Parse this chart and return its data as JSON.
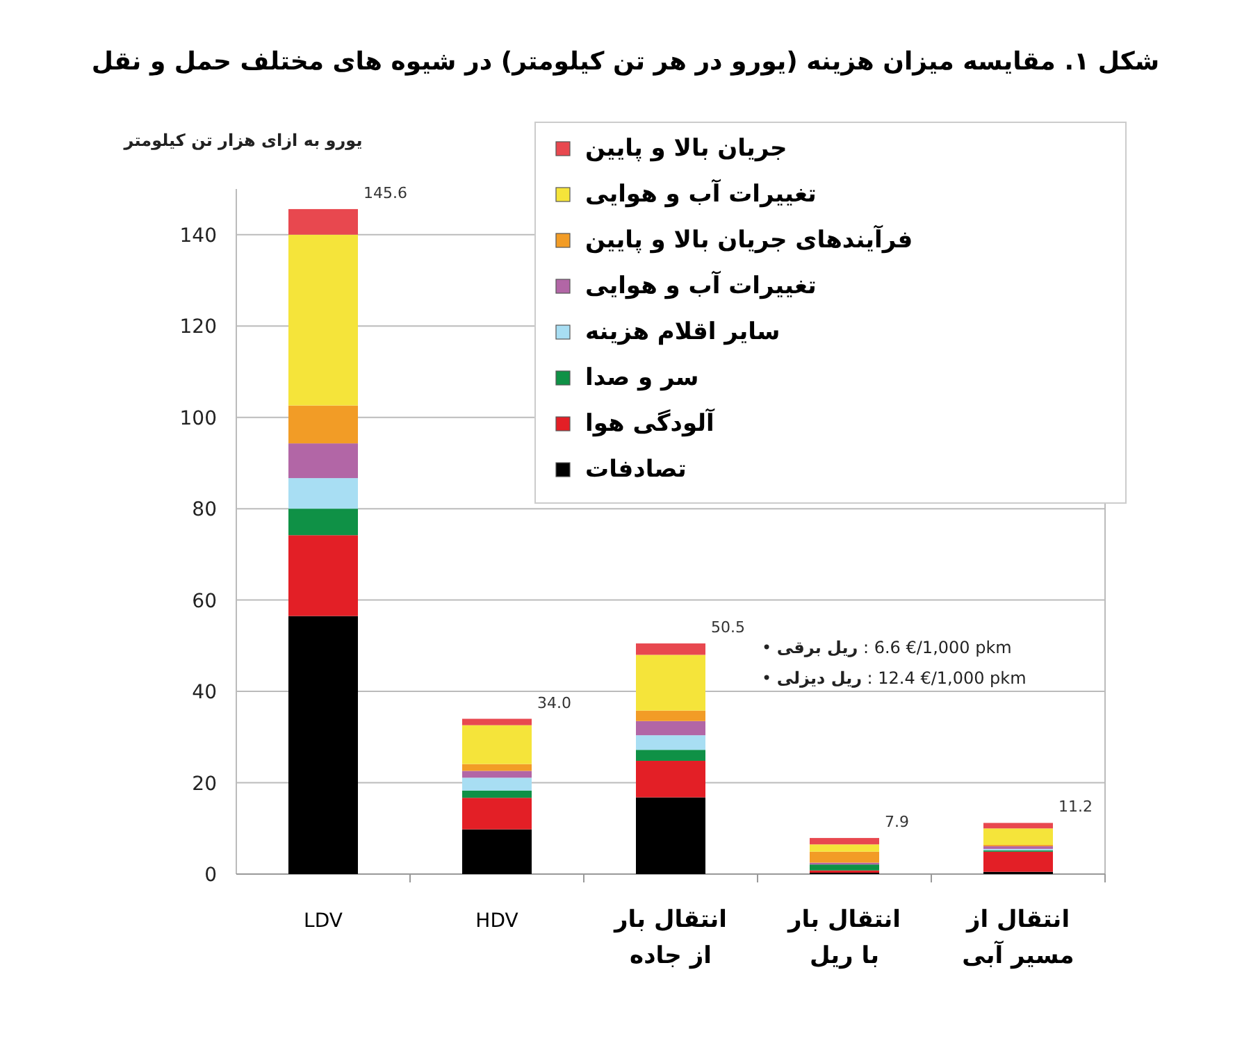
{
  "chart_data": {
    "type": "bar",
    "title": "شکل ۱. مقایسه میزان هزینه (یورو در هر تن کیلومتر) در شیوه های مختلف حمل و نقل",
    "ylabel": "یورو به ازای هزار تن کیلومتر",
    "categories": [
      "LDV",
      "HDV",
      "انتقال بار\nاز جاده",
      "انتقال بار\nبا ریل",
      "انتقال از\nمسیر آبی"
    ],
    "stacked": true,
    "series": [
      {
        "name": "تصادفات",
        "color": "#000000",
        "values": [
          56.5,
          9.8,
          16.8,
          0.3,
          0.5
        ]
      },
      {
        "name": "آلودگی هوا",
        "color": "#e31f26",
        "values": [
          17.7,
          6.9,
          8.0,
          0.5,
          4.4
        ]
      },
      {
        "name": "سر و صدا",
        "color": "#0f9146",
        "values": [
          5.8,
          1.6,
          2.4,
          1.3,
          0.3
        ]
      },
      {
        "name": "سایر اقلام هزینه",
        "color": "#a8def3",
        "values": [
          6.7,
          2.8,
          3.2,
          null,
          0.3
        ]
      },
      {
        "name": "تغییرات آب و هوایی",
        "color": "#b266a6",
        "values": [
          7.6,
          1.5,
          3.1,
          0.4,
          0.6
        ]
      },
      {
        "name": "فرآیندهای جریان بالا و پایین",
        "color": "#f29c26",
        "values": [
          8.3,
          1.5,
          2.3,
          2.4,
          0.3
        ]
      },
      {
        "name": "تغییرات آب و هوایی",
        "color": "#f5e43a",
        "values": [
          37.4,
          8.5,
          12.2,
          1.6,
          3.6
        ]
      },
      {
        "name": "جریان بالا و پایین",
        "color": "#e8484f",
        "values": [
          5.6,
          1.4,
          2.5,
          1.4,
          1.2
        ]
      }
    ],
    "totals": [
      "145.6",
      "34.0",
      "50.5",
      "7.9",
      "11.2"
    ],
    "annotations": [
      "• ریل برقی : 6.6 €/1,000 pkm",
      "• ریل دیزلی : 12.4 €/1,000 pkm"
    ],
    "ylim": [
      0,
      150
    ],
    "yticks": [
      0,
      20,
      40,
      60,
      80,
      100,
      120,
      140
    ],
    "grid": "y",
    "legend": "top right"
  }
}
